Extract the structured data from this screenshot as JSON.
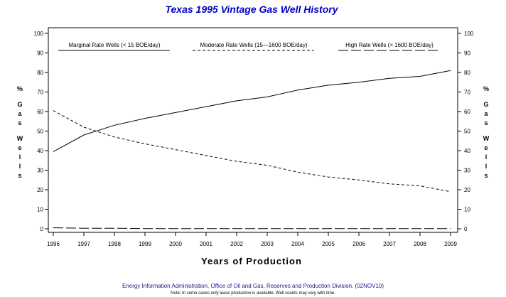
{
  "chart_data": {
    "type": "line",
    "title": "Texas  1995  Vintage  Gas  Well  History",
    "xlabel": "Years of Production",
    "ylabel": "% Gas Wells",
    "ylabel_chars": [
      "%",
      "G",
      "a",
      "s",
      "W",
      "e",
      "l",
      "l",
      "s"
    ],
    "x": [
      1996,
      1997,
      1998,
      1999,
      2000,
      2001,
      2002,
      2003,
      2004,
      2005,
      2006,
      2007,
      2008,
      2009
    ],
    "xlim": [
      1996,
      2009
    ],
    "ylim": [
      0,
      100
    ],
    "yticks": [
      0,
      10,
      20,
      30,
      40,
      50,
      60,
      70,
      80,
      90,
      100
    ],
    "grid": false,
    "legend_position": "top",
    "series": [
      {
        "name": "Marginal Rate Wells  (<  15 BOE/day)",
        "style": "solid",
        "values": [
          39.5,
          48,
          53,
          56.5,
          59.5,
          62.5,
          65.5,
          67.5,
          71,
          73.5,
          75,
          77,
          78,
          81
        ]
      },
      {
        "name": "Moderate Rate Wells (15—1600 BOE/day)",
        "style": "dashed",
        "values": [
          60.5,
          52,
          47,
          43.5,
          40.5,
          37.5,
          34.5,
          32.5,
          29,
          26.5,
          25,
          23,
          22,
          19
        ]
      },
      {
        "name": "High Rate Wells  (> 1600 BOE/day)",
        "style": "longdash",
        "values": [
          0.5,
          0.3,
          0.3,
          0.1,
          0.1,
          0.1,
          0.1,
          0.1,
          0.1,
          0.1,
          0.1,
          0.1,
          0.1,
          0.1
        ]
      }
    ]
  },
  "footer": {
    "source": "Energy Information Administration, Office of Oil and Gas, Reserves and Production Division. (02NOV10)",
    "note": "Note: In some cases only lease production is available. Well counts may vary with time."
  }
}
